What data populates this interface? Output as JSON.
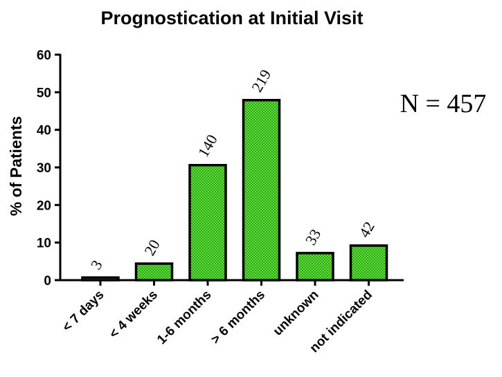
{
  "chart_data": {
    "type": "bar",
    "title": "Prognostication at Initial Visit",
    "ylabel": "% of Patients",
    "xlabel": "",
    "categories": [
      "< 7 days",
      "< 4 weeks",
      "1-6 months",
      "> 6 months",
      "unknown",
      "not indicated"
    ],
    "values": [
      0.7,
      4.4,
      30.6,
      47.9,
      7.2,
      9.2
    ],
    "data_labels": [
      "3",
      "20",
      "140",
      "219",
      "33",
      "42"
    ],
    "ylim": [
      0,
      60
    ],
    "yticks": [
      "0",
      "10",
      "20",
      "30",
      "40",
      "50",
      "60"
    ],
    "grid": false,
    "legend": "none",
    "annotation": "N = 457",
    "bar_color": "#3cbf1f",
    "bar_pattern": "checkered"
  }
}
